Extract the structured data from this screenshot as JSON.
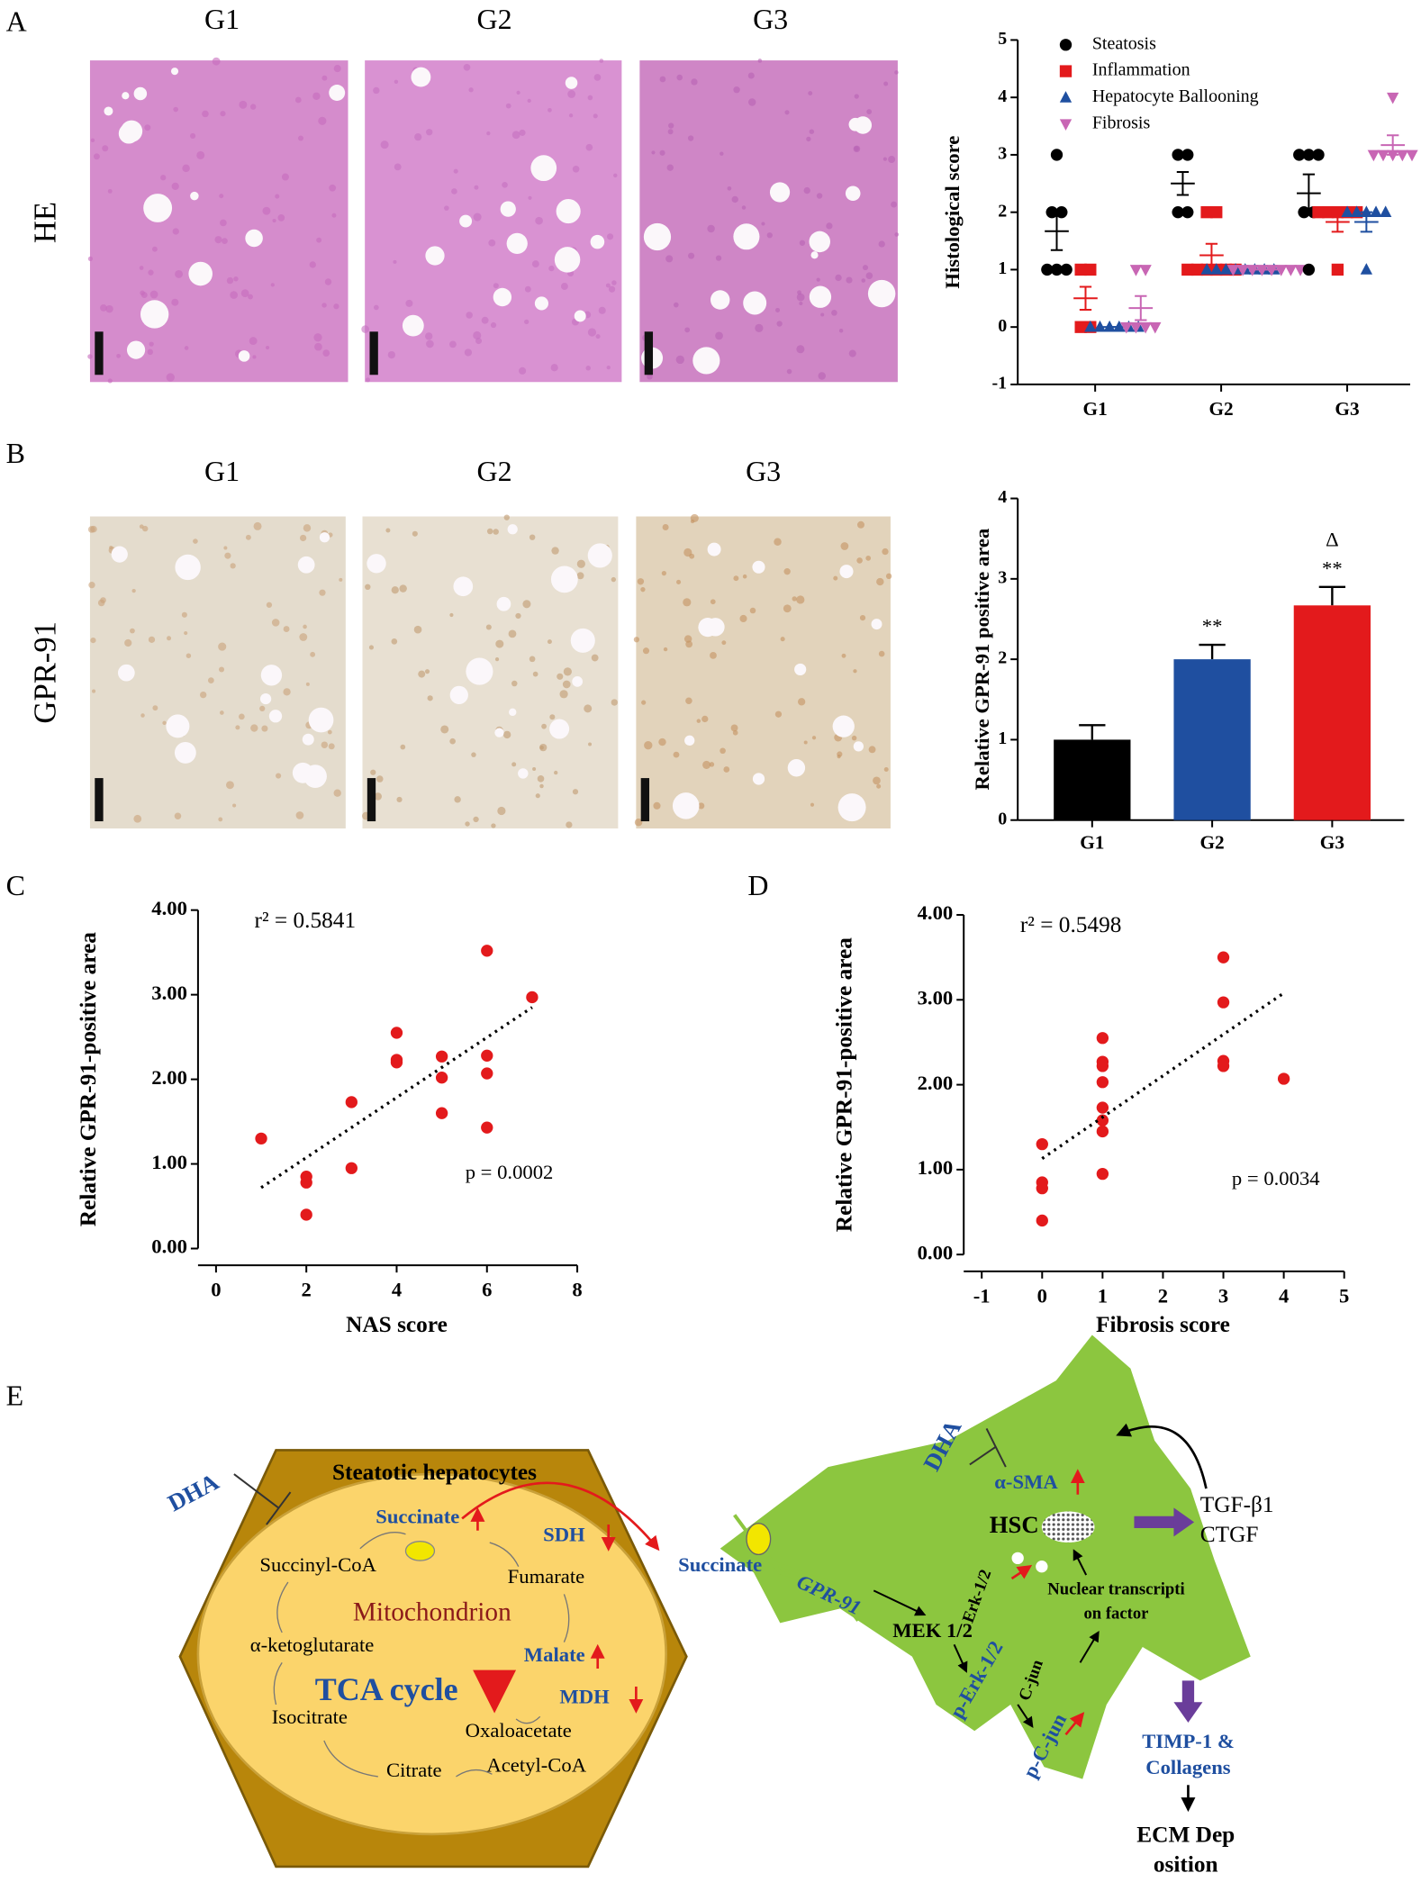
{
  "panels": {
    "A": {
      "label": "A",
      "groups": [
        "G1",
        "G2",
        "G3"
      ],
      "stain": "HE"
    },
    "B": {
      "label": "B",
      "groups": [
        "G1",
        "G2",
        "G3"
      ],
      "stain": "GPR-91"
    },
    "C": {
      "label": "C"
    },
    "D": {
      "label": "D"
    },
    "E": {
      "label": "E"
    }
  },
  "chart_data": [
    {
      "type": "dot",
      "ylabel": "Histological score",
      "categories": [
        "G1",
        "G2",
        "G3"
      ],
      "ylim": [
        -1,
        5
      ],
      "yticks": [
        -1,
        0,
        1,
        2,
        3,
        4,
        5
      ],
      "series": [
        {
          "name": "Steatosis",
          "color": "#000000",
          "marker": "circle",
          "values": [
            [
              3,
              2,
              2,
              1,
              1,
              1
            ],
            [
              3,
              3,
              2,
              2
            ],
            [
              3,
              3,
              3,
              2,
              2,
              1
            ]
          ],
          "means": [
            1.67,
            2.5,
            2.33
          ],
          "errors": [
            0.33,
            0.2,
            0.33
          ]
        },
        {
          "name": "Inflammation",
          "color": "#e31a1c",
          "marker": "square",
          "values": [
            [
              1,
              0,
              0,
              1
            ],
            [
              2,
              2,
              1,
              1,
              1,
              1,
              1,
              1
            ],
            [
              2,
              2,
              2,
              2,
              2,
              1
            ]
          ],
          "means": [
            0.5,
            1.25,
            1.83
          ],
          "errors": [
            0.2,
            0.2,
            0.17
          ]
        },
        {
          "name": "Hepatocyte Ballooning",
          "color": "#1f4fa0",
          "marker": "triangle",
          "values": [
            [
              0,
              0,
              0,
              0,
              0,
              0
            ],
            [
              1,
              1,
              1,
              1,
              1,
              1,
              1,
              1
            ],
            [
              2,
              2,
              2,
              2,
              2,
              1
            ]
          ],
          "means": [
            0,
            1,
            1.83
          ],
          "errors": [
            0,
            0,
            0.17
          ]
        },
        {
          "name": "Fibrosis",
          "color": "#c866b4",
          "marker": "down-triangle",
          "values": [
            [
              1,
              1,
              0,
              0,
              0,
              0
            ],
            [
              1,
              1,
              1,
              1,
              1,
              1,
              1,
              1
            ],
            [
              4,
              3,
              3,
              3,
              3,
              3
            ]
          ],
          "means": [
            0.33,
            1,
            3.17
          ],
          "errors": [
            0.21,
            0,
            0.17
          ]
        }
      ]
    },
    {
      "type": "bar",
      "ylabel": "Relative GPR-91 positive area",
      "categories": [
        "G1",
        "G2",
        "G3"
      ],
      "values": [
        1.0,
        2.0,
        2.67
      ],
      "errors": [
        0.18,
        0.18,
        0.23
      ],
      "colors": [
        "#000000",
        "#1f4fa0",
        "#e31a1c"
      ],
      "value_annotations": [
        null,
        [
          "**"
        ],
        [
          "Δ",
          "**"
        ]
      ],
      "ylim": [
        0,
        4
      ],
      "yticks": [
        0,
        1,
        2,
        3,
        4
      ]
    },
    {
      "type": "scatter",
      "xlabel": "NAS score",
      "ylabel": "Relative GPR-91-positive area",
      "color": "#e31a1c",
      "x": [
        1,
        2,
        2,
        2,
        3,
        3,
        4,
        4,
        4,
        5,
        5,
        5,
        6,
        6,
        6,
        6,
        7
      ],
      "y": [
        1.3,
        0.85,
        0.78,
        0.4,
        1.73,
        0.95,
        2.55,
        2.23,
        2.2,
        2.27,
        2.02,
        1.6,
        3.52,
        2.28,
        2.07,
        1.43,
        2.97
      ],
      "xlim": [
        0,
        8
      ],
      "xticks": [
        0,
        2,
        4,
        6,
        8
      ],
      "ylim": [
        0,
        4
      ],
      "yticks": [
        {
          "value": 0,
          "label": "0.00"
        },
        {
          "value": 1,
          "label": "1.00"
        },
        {
          "value": 2,
          "label": "2.00"
        },
        {
          "value": 3,
          "label": "3.00"
        },
        {
          "value": 4,
          "label": "4.00"
        }
      ],
      "trendline": {
        "x": [
          1,
          7
        ],
        "y": [
          0.72,
          2.85
        ]
      },
      "r2_label": "r² = 0.5841",
      "p_label": "p = 0.0002"
    },
    {
      "type": "scatter",
      "xlabel": "Fibrosis  score",
      "ylabel": "Relative GPR-91-positive area",
      "color": "#e31a1c",
      "x": [
        0,
        0,
        0,
        0,
        1,
        1,
        1,
        1,
        1,
        1,
        1,
        1,
        3,
        3,
        3,
        3,
        4
      ],
      "y": [
        1.3,
        0.85,
        0.78,
        0.4,
        2.55,
        2.27,
        2.22,
        2.03,
        1.73,
        1.58,
        1.45,
        0.95,
        3.5,
        2.97,
        2.28,
        2.22,
        2.07
      ],
      "xlim": [
        -1,
        5
      ],
      "xticks": [
        -1,
        0,
        1,
        2,
        3,
        4,
        5
      ],
      "ylim": [
        0,
        4
      ],
      "yticks": [
        {
          "value": 0,
          "label": "0.00"
        },
        {
          "value": 1,
          "label": "1.00"
        },
        {
          "value": 2,
          "label": "2.00"
        },
        {
          "value": 3,
          "label": "3.00"
        },
        {
          "value": 4,
          "label": "4.00"
        }
      ],
      "trendline": {
        "x": [
          0,
          4
        ],
        "y": [
          1.13,
          3.08
        ]
      },
      "r2_label": "r² = 0.5498",
      "p_label": "p = 0.0034"
    }
  ],
  "diagram": {
    "hepatocyte_title": "Steatotic hepatocytes",
    "dha_left": "DHA",
    "succinate_in": "Succinate",
    "sdh": "SDH",
    "succinyl_coa": "Succinyl-CoA",
    "fumarate": "Fumarate",
    "mitochondrion": "Mitochondrion",
    "a_ketoglutarate": "α-ketoglutarate",
    "malate": "Malate",
    "tca_cycle": "TCA cycle",
    "mdh": "MDH",
    "isocitrate": "Isocitrate",
    "oxaloacetate": "Oxaloacetate",
    "citrate": "Citrate",
    "acetyl_coa": "Acetyl-CoA",
    "dha_right": "DHA",
    "succinate_out": "Succinate",
    "gpr91": "GPR-91",
    "a_sma": "α-SMA",
    "hsc": "HSC",
    "mek": "MEK 1/2",
    "erk": "Erk-1/2",
    "p_erk": "p-Erk-1/2",
    "c_jun": "C-jun",
    "p_c_jun": "p-C-jun",
    "nuclear_1": "Nuclear transcripti",
    "nuclear_2": "on factor",
    "tgf": "TGF-β1",
    "ctgf": "CTGF",
    "timp_1": "TIMP-1 &",
    "timp_2": "Collagens",
    "ecm_1": "ECM Dep",
    "ecm_2": "osition"
  }
}
